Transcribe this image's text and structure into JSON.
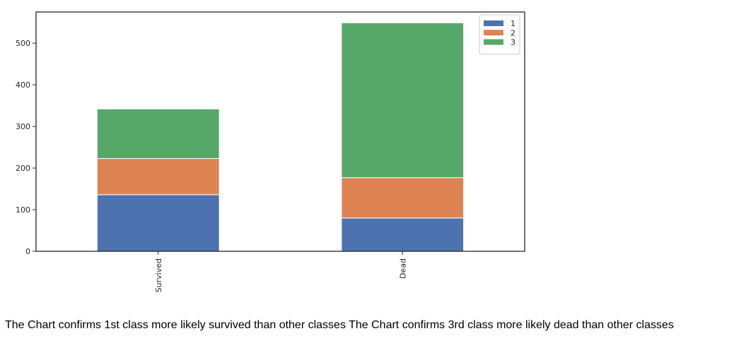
{
  "chart_data": {
    "type": "bar",
    "stacked": true,
    "categories": [
      "Survived",
      "Dead"
    ],
    "series": [
      {
        "name": "1",
        "values": [
          136,
          80
        ],
        "color": "#4c72b0"
      },
      {
        "name": "2",
        "values": [
          87,
          97
        ],
        "color": "#dd8452"
      },
      {
        "name": "3",
        "values": [
          119,
          372
        ],
        "color": "#55a868"
      }
    ],
    "ylim": [
      0,
      575
    ],
    "yticks": [
      0,
      100,
      200,
      300,
      400,
      500
    ],
    "xtick_rotation": "vertical",
    "legend_position": "top-right",
    "grid": false
  },
  "caption": "The Chart confirms 1st class more likely survived than other classes The Chart confirms 3rd class more likely dead than other classes"
}
